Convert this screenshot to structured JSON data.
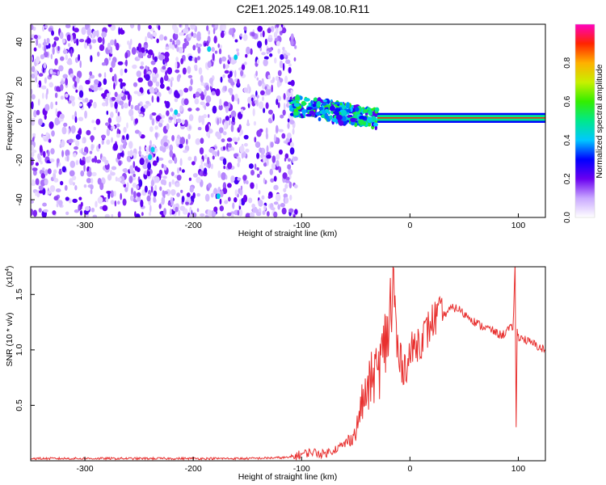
{
  "title": "C2E1.2025.149.08.10.R11",
  "chart_data": [
    {
      "type": "heatmap",
      "xlabel": "Height of straight line (km)",
      "ylabel": "Frequency (Hz)",
      "xlim": [
        -350,
        125
      ],
      "ylim": [
        -49,
        49
      ],
      "xticks": [
        -300,
        -200,
        -100,
        0,
        100
      ],
      "yticks": [
        -40,
        -20,
        0,
        20,
        40
      ],
      "colorbar": {
        "label": "Normalized spectral amplitude",
        "range": [
          0,
          1
        ],
        "ticks": [
          0.0,
          0.2,
          0.4,
          0.6,
          0.8
        ]
      },
      "regions": [
        {
          "x": [
            -350,
            -105
          ],
          "freq": [
            -49,
            49
          ],
          "amplitude": [
            0.0,
            0.2
          ]
        },
        {
          "x": [
            -110,
            -30
          ],
          "freq": [
            -5,
            12
          ],
          "amplitude": [
            0.2,
            0.6
          ]
        },
        {
          "x": [
            -30,
            125
          ],
          "freq": [
            0,
            3
          ],
          "amplitude": [
            0.7,
            1.0
          ]
        }
      ]
    },
    {
      "type": "line",
      "xlabel": "Height of straight line (km)",
      "ylabel": "SNR (10 * v/v)",
      "multiplier": "(x10^4)",
      "multiplier_base": "(x10",
      "multiplier_exp": "4",
      "xlim": [
        -350,
        125
      ],
      "ylim": [
        0,
        1.75
      ],
      "xticks": [
        -300,
        -200,
        -100,
        0,
        100
      ],
      "yticks": [
        0.5,
        1.0,
        1.5
      ],
      "ytick_labels": [
        "0.5",
        "1.0",
        "1.5"
      ],
      "color": "#e8302f",
      "series": [
        {
          "x": [
            -350,
            -300,
            -250,
            -200,
            -150,
            -110,
            -100,
            -90,
            -80,
            -70,
            -60,
            -50,
            -45,
            -40,
            -35,
            -30,
            -25,
            -20,
            -15,
            -12,
            -10,
            -5,
            0,
            5,
            10,
            15,
            20,
            25,
            30,
            35,
            40,
            45,
            50,
            55,
            60,
            65,
            70,
            75,
            80,
            85,
            90,
            95,
            97,
            98,
            99,
            100,
            105,
            110,
            115,
            120,
            125
          ],
          "y": [
            0.02,
            0.02,
            0.02,
            0.02,
            0.02,
            0.03,
            0.06,
            0.08,
            0.06,
            0.1,
            0.15,
            0.25,
            0.5,
            0.6,
            0.75,
            0.8,
            0.95,
            1.2,
            1.55,
            1.0,
            0.9,
            0.85,
            0.95,
            1.05,
            1.1,
            1.15,
            1.25,
            1.3,
            1.3,
            1.35,
            1.38,
            1.37,
            1.32,
            1.3,
            1.25,
            1.22,
            1.2,
            1.18,
            1.15,
            1.13,
            1.18,
            1.2,
            1.75,
            0.3,
            1.2,
            1.12,
            1.1,
            1.07,
            1.05,
            1.02,
            1.0
          ]
        }
      ]
    }
  ]
}
